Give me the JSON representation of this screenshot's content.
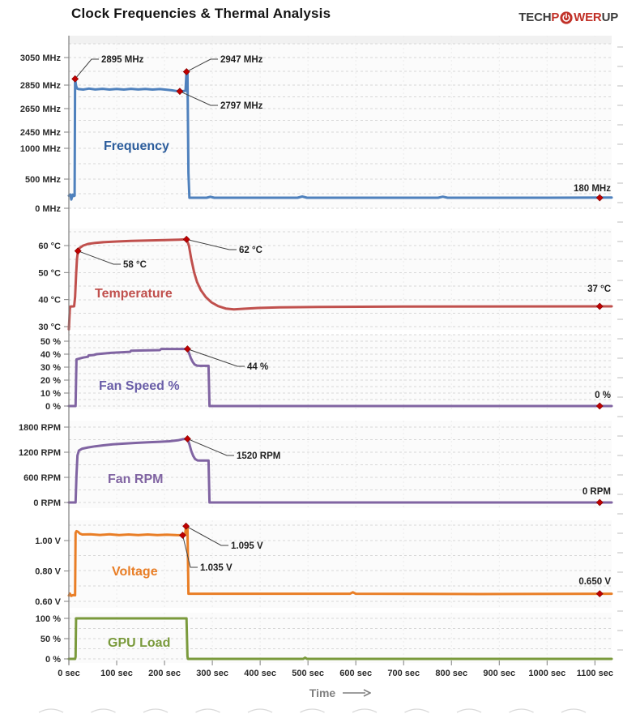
{
  "header": {
    "title": "Clock Frequencies & Thermal Analysis",
    "logo": {
      "t1": "TECH",
      "t2": "P",
      "t3": "WER",
      "t4": "UP",
      "icon": "power-icon",
      "dark_color": "#3B3B3B",
      "red_color": "#C13128"
    }
  },
  "xaxis": {
    "title": "Time",
    "ticks": [
      {
        "t": 0,
        "label": "0 sec"
      },
      {
        "t": 100,
        "label": "100 sec"
      },
      {
        "t": 200,
        "label": "200 sec"
      },
      {
        "t": 300,
        "label": "300 sec"
      },
      {
        "t": 400,
        "label": "400 sec"
      },
      {
        "t": 500,
        "label": "500 sec"
      },
      {
        "t": 600,
        "label": "600 sec"
      },
      {
        "t": 700,
        "label": "700 sec"
      },
      {
        "t": 800,
        "label": "800 sec"
      },
      {
        "t": 900,
        "label": "900 sec"
      },
      {
        "t": 1000,
        "label": "1000 sec"
      },
      {
        "t": 1100,
        "label": "1100 sec"
      }
    ],
    "range_sec": [
      0,
      1135
    ]
  },
  "marker_color": "#C00000",
  "chart_data": [
    {
      "id": "frequency",
      "type": "line",
      "label": "Frequency",
      "label_color": "#2C5D9C",
      "line_color": "#4F81BD",
      "unit": "MHz",
      "yticks": [
        {
          "v": 3050,
          "label": "3050 MHz"
        },
        {
          "v": 2850,
          "label": "2850 MHz"
        },
        {
          "v": 2650,
          "label": "2650 MHz"
        },
        {
          "v": 2450,
          "label": "2450 MHz"
        },
        {
          "v": 1000,
          "label": "1000 MHz"
        },
        {
          "v": 500,
          "label": "500 MHz"
        },
        {
          "v": 0,
          "label": "0 MHz"
        }
      ],
      "axis_break": [
        1000,
        2450
      ],
      "series": [
        [
          0,
          215
        ],
        [
          3,
          235
        ],
        [
          5,
          150
        ],
        [
          8,
          235
        ],
        [
          10,
          210
        ],
        [
          12,
          215
        ],
        [
          13,
          2895
        ],
        [
          15,
          2845
        ],
        [
          17,
          2822
        ],
        [
          20,
          2816
        ],
        [
          30,
          2812
        ],
        [
          42,
          2820
        ],
        [
          55,
          2813
        ],
        [
          70,
          2818
        ],
        [
          85,
          2812
        ],
        [
          100,
          2817
        ],
        [
          115,
          2812
        ],
        [
          130,
          2818
        ],
        [
          145,
          2813
        ],
        [
          160,
          2817
        ],
        [
          175,
          2812
        ],
        [
          190,
          2816
        ],
        [
          205,
          2810
        ],
        [
          215,
          2806
        ],
        [
          225,
          2800
        ],
        [
          232,
          2797
        ],
        [
          238,
          2799
        ],
        [
          244,
          2801
        ],
        [
          246,
          2947
        ],
        [
          248,
          2945
        ],
        [
          250,
          600
        ],
        [
          252,
          180
        ],
        [
          288,
          180
        ],
        [
          296,
          197
        ],
        [
          304,
          180
        ],
        [
          478,
          180
        ],
        [
          488,
          201
        ],
        [
          498,
          180
        ],
        [
          772,
          180
        ],
        [
          782,
          199
        ],
        [
          792,
          180
        ],
        [
          1000,
          180
        ],
        [
          1135,
          183
        ]
      ],
      "annotations": [
        {
          "text": "2895 MHz",
          "t": 13,
          "v": 2895
        },
        {
          "text": "2947 MHz",
          "t": 246,
          "v": 2947
        },
        {
          "text": "2797 MHz",
          "t": 232,
          "v": 2797
        },
        {
          "text": "180 MHz",
          "t": 1110,
          "v": 180,
          "side": "right"
        }
      ]
    },
    {
      "id": "temperature",
      "type": "line",
      "label": "Temperature",
      "label_color": "#C0504D",
      "line_color": "#C0504D",
      "unit": "°C",
      "yticks": [
        {
          "v": 60,
          "label": "60 °C"
        },
        {
          "v": 50,
          "label": "50 °C"
        },
        {
          "v": 40,
          "label": "40 °C"
        },
        {
          "v": 30,
          "label": "30 °C"
        }
      ],
      "series": [
        [
          0,
          29
        ],
        [
          2,
          36.5
        ],
        [
          3,
          37.4
        ],
        [
          11,
          37.5
        ],
        [
          13,
          41
        ],
        [
          15,
          49
        ],
        [
          17,
          55
        ],
        [
          19,
          58
        ],
        [
          23,
          59.2
        ],
        [
          30,
          60
        ],
        [
          40,
          60.6
        ],
        [
          55,
          61
        ],
        [
          75,
          61.3
        ],
        [
          100,
          61.5
        ],
        [
          130,
          61.7
        ],
        [
          165,
          61.9
        ],
        [
          200,
          62
        ],
        [
          230,
          62.2
        ],
        [
          246,
          62.3
        ],
        [
          251,
          60
        ],
        [
          256,
          55
        ],
        [
          262,
          50
        ],
        [
          268,
          46.5
        ],
        [
          276,
          43.5
        ],
        [
          286,
          41
        ],
        [
          298,
          39
        ],
        [
          312,
          37.6
        ],
        [
          328,
          36.7
        ],
        [
          345,
          36.4
        ],
        [
          365,
          36.6
        ],
        [
          395,
          36.9
        ],
        [
          440,
          37.1
        ],
        [
          520,
          37.3
        ],
        [
          700,
          37.4
        ],
        [
          1135,
          37.5
        ]
      ],
      "annotations": [
        {
          "text": "58 °C",
          "t": 19,
          "v": 58
        },
        {
          "text": "62 °C",
          "t": 246,
          "v": 62.3
        },
        {
          "text": "37 °C",
          "t": 1110,
          "v": 37.5,
          "side": "right"
        }
      ]
    },
    {
      "id": "fan_speed",
      "type": "line",
      "label": "Fan Speed %",
      "label_color": "#6A5EA8",
      "line_color": "#8064A2",
      "unit": "%",
      "yticks": [
        {
          "v": 50,
          "label": "50 %"
        },
        {
          "v": 40,
          "label": "40 %"
        },
        {
          "v": 30,
          "label": "30 %"
        },
        {
          "v": 20,
          "label": "20 %"
        },
        {
          "v": 10,
          "label": "10 %"
        },
        {
          "v": 0,
          "label": "0 %"
        }
      ],
      "series": [
        [
          0,
          0
        ],
        [
          14,
          0
        ],
        [
          15,
          20
        ],
        [
          16,
          36
        ],
        [
          22,
          36.6
        ],
        [
          30,
          37.4
        ],
        [
          40,
          38
        ],
        [
          41,
          39
        ],
        [
          52,
          39.4
        ],
        [
          58,
          40
        ],
        [
          72,
          40.5
        ],
        [
          88,
          41
        ],
        [
          108,
          41.4
        ],
        [
          128,
          41.8
        ],
        [
          130,
          42.6
        ],
        [
          158,
          42.9
        ],
        [
          190,
          43.1
        ],
        [
          193,
          44
        ],
        [
          230,
          44
        ],
        [
          248,
          44
        ],
        [
          251,
          41
        ],
        [
          255,
          37
        ],
        [
          259,
          34
        ],
        [
          263,
          32
        ],
        [
          268,
          31.2
        ],
        [
          274,
          31
        ],
        [
          292,
          31
        ],
        [
          294,
          0
        ],
        [
          1135,
          0
        ]
      ],
      "annotations": [
        {
          "text": "44 %",
          "t": 248,
          "v": 44
        },
        {
          "text": "0 %",
          "t": 1110,
          "v": 0,
          "side": "right"
        }
      ]
    },
    {
      "id": "fan_rpm",
      "type": "line",
      "label": "Fan RPM",
      "label_color": "#8064A2",
      "line_color": "#8064A2",
      "unit": "RPM",
      "yticks": [
        {
          "v": 1800,
          "label": "1800 RPM"
        },
        {
          "v": 1200,
          "label": "1200 RPM"
        },
        {
          "v": 600,
          "label": "600 RPM"
        },
        {
          "v": 0,
          "label": "0 RPM"
        }
      ],
      "series": [
        [
          0,
          0
        ],
        [
          14,
          0
        ],
        [
          16,
          650
        ],
        [
          18,
          1120
        ],
        [
          21,
          1240
        ],
        [
          28,
          1285
        ],
        [
          40,
          1315
        ],
        [
          55,
          1342
        ],
        [
          72,
          1365
        ],
        [
          92,
          1388
        ],
        [
          115,
          1405
        ],
        [
          140,
          1422
        ],
        [
          165,
          1438
        ],
        [
          190,
          1450
        ],
        [
          210,
          1462
        ],
        [
          228,
          1485
        ],
        [
          238,
          1512
        ],
        [
          248,
          1520
        ],
        [
          252,
          1390
        ],
        [
          256,
          1230
        ],
        [
          260,
          1110
        ],
        [
          264,
          1040
        ],
        [
          269,
          1005
        ],
        [
          275,
          1000
        ],
        [
          292,
          1000
        ],
        [
          294,
          0
        ],
        [
          1135,
          0
        ]
      ],
      "annotations": [
        {
          "text": "1520 RPM",
          "t": 248,
          "v": 1520
        },
        {
          "text": "0 RPM",
          "t": 1110,
          "v": 0,
          "side": "right"
        }
      ]
    },
    {
      "id": "voltage",
      "type": "line",
      "label": "Voltage",
      "label_color": "#E97E26",
      "line_color": "#E97E26",
      "unit": "V",
      "yticks": [
        {
          "v": 1.0,
          "label": "1.00 V"
        },
        {
          "v": 0.8,
          "label": "0.80 V"
        },
        {
          "v": 0.6,
          "label": "0.60 V"
        }
      ],
      "series": [
        [
          0,
          0.638
        ],
        [
          2,
          0.651
        ],
        [
          5,
          0.636
        ],
        [
          9,
          0.641
        ],
        [
          13,
          0.64
        ],
        [
          14,
          1.05
        ],
        [
          16,
          1.062
        ],
        [
          19,
          1.058
        ],
        [
          23,
          1.046
        ],
        [
          28,
          1.04
        ],
        [
          45,
          1.041
        ],
        [
          65,
          1.037
        ],
        [
          85,
          1.041
        ],
        [
          105,
          1.036
        ],
        [
          125,
          1.04
        ],
        [
          145,
          1.036
        ],
        [
          165,
          1.04
        ],
        [
          185,
          1.036
        ],
        [
          205,
          1.039
        ],
        [
          225,
          1.036
        ],
        [
          238,
          1.035
        ],
        [
          243,
          1.036
        ],
        [
          245,
          1.095
        ],
        [
          248,
          1.094
        ],
        [
          250,
          0.65
        ],
        [
          400,
          0.65
        ],
        [
          588,
          0.65
        ],
        [
          594,
          0.66
        ],
        [
          600,
          0.65
        ],
        [
          860,
          0.648
        ],
        [
          1135,
          0.65
        ]
      ],
      "annotations": [
        {
          "text": "1.095 V",
          "t": 245,
          "v": 1.095
        },
        {
          "text": "1.035 V",
          "t": 238,
          "v": 1.035
        },
        {
          "text": "0.650 V",
          "t": 1110,
          "v": 0.65,
          "side": "right"
        }
      ]
    },
    {
      "id": "gpu_load",
      "type": "line",
      "label": "GPU Load",
      "label_color": "#7A9A3C",
      "line_color": "#7A9A3C",
      "unit": "%",
      "yticks": [
        {
          "v": 100,
          "label": "100 %"
        },
        {
          "v": 50,
          "label": "50 %"
        },
        {
          "v": 0,
          "label": "0 %"
        }
      ],
      "series": [
        [
          0,
          0
        ],
        [
          13,
          0
        ],
        [
          14,
          5
        ],
        [
          15,
          100
        ],
        [
          246,
          100
        ],
        [
          248,
          6
        ],
        [
          249,
          0
        ],
        [
          490,
          0
        ],
        [
          494,
          3
        ],
        [
          498,
          0
        ],
        [
          1135,
          0
        ]
      ],
      "annotations": []
    }
  ]
}
